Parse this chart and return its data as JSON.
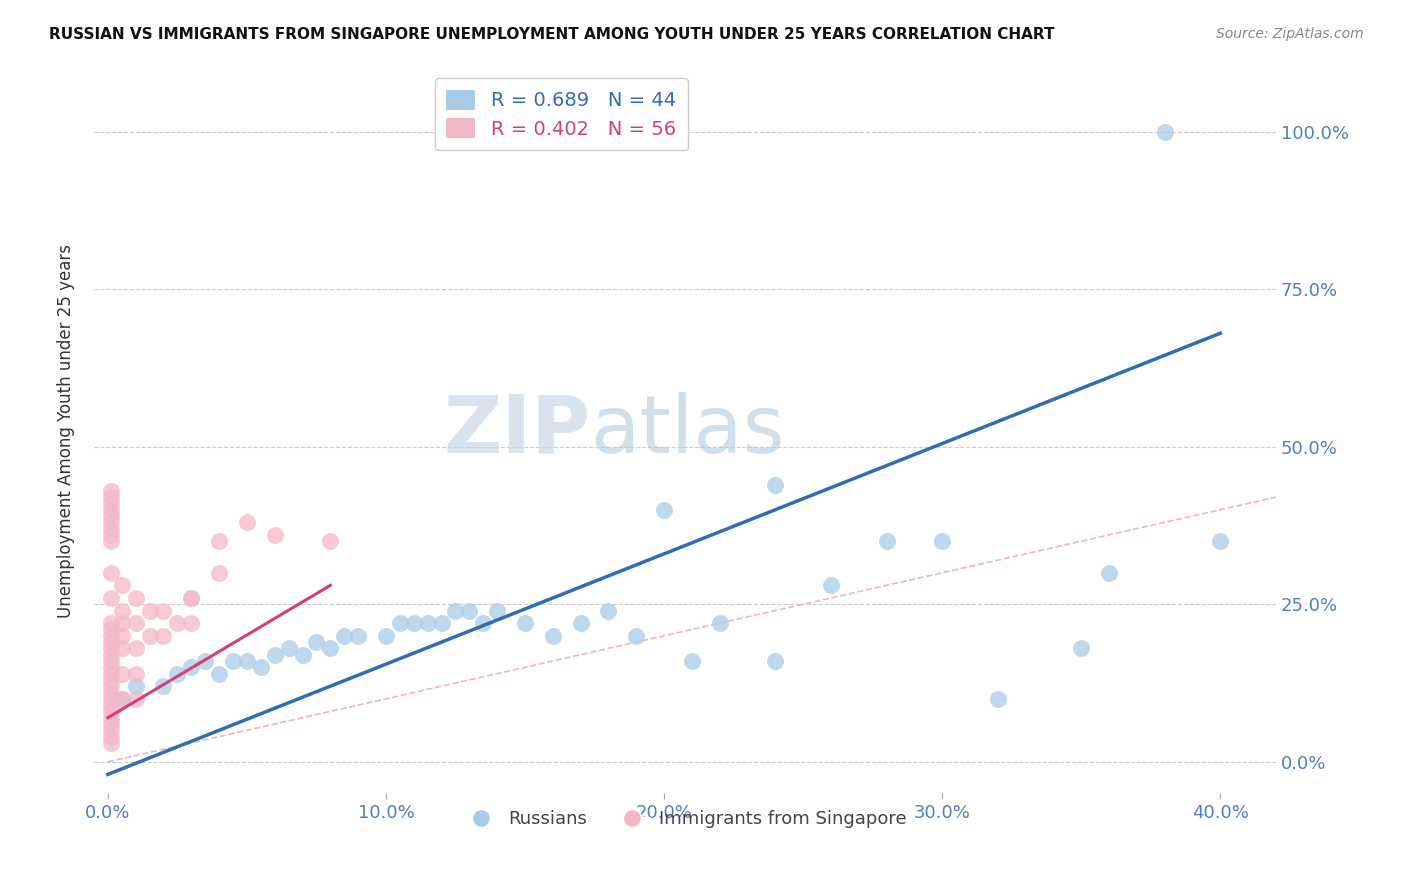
{
  "title": "RUSSIAN VS IMMIGRANTS FROM SINGAPORE UNEMPLOYMENT AMONG YOUTH UNDER 25 YEARS CORRELATION CHART",
  "source": "Source: ZipAtlas.com",
  "xlabel_ticks": [
    "0.0%",
    "10.0%",
    "20.0%",
    "30.0%",
    "40.0%"
  ],
  "xlabel_tick_vals": [
    0.0,
    0.1,
    0.2,
    0.3,
    0.4
  ],
  "ylabel": "Unemployment Among Youth under 25 years",
  "ylabel_ticks": [
    "0.0%",
    "25.0%",
    "50.0%",
    "75.0%",
    "100.0%"
  ],
  "ylabel_tick_vals": [
    0.0,
    0.25,
    0.5,
    0.75,
    1.0
  ],
  "xlim": [
    -0.005,
    0.42
  ],
  "ylim": [
    -0.05,
    1.1
  ],
  "legend_blue_label": "R = 0.689   N = 44",
  "legend_pink_label": "R = 0.402   N = 56",
  "legend_label_russians": "Russians",
  "legend_label_singapore": "Immigrants from Singapore",
  "blue_color": "#a8cce8",
  "pink_color": "#f4b8c8",
  "blue_line_color": "#2f6db5",
  "pink_line_color": "#d44070",
  "diag_line_color": "#e8b8c8",
  "watermark": "ZIPatlas",
  "blue_scatter_x": [
    0.005,
    0.01,
    0.02,
    0.025,
    0.03,
    0.035,
    0.04,
    0.045,
    0.05,
    0.055,
    0.06,
    0.065,
    0.07,
    0.075,
    0.08,
    0.085,
    0.09,
    0.1,
    0.105,
    0.11,
    0.115,
    0.12,
    0.125,
    0.13,
    0.135,
    0.14,
    0.15,
    0.16,
    0.17,
    0.18,
    0.19,
    0.2,
    0.21,
    0.22,
    0.24,
    0.26,
    0.28,
    0.3,
    0.32,
    0.35,
    0.24,
    0.36,
    0.38,
    0.4
  ],
  "blue_scatter_y": [
    0.1,
    0.12,
    0.12,
    0.14,
    0.15,
    0.16,
    0.14,
    0.16,
    0.16,
    0.15,
    0.17,
    0.18,
    0.17,
    0.19,
    0.18,
    0.2,
    0.2,
    0.2,
    0.22,
    0.22,
    0.22,
    0.22,
    0.24,
    0.24,
    0.22,
    0.24,
    0.22,
    0.2,
    0.22,
    0.24,
    0.2,
    0.4,
    0.16,
    0.22,
    0.16,
    0.28,
    0.35,
    0.35,
    0.1,
    0.18,
    0.44,
    0.3,
    1.0,
    0.35
  ],
  "pink_scatter_x": [
    0.001,
    0.001,
    0.001,
    0.001,
    0.001,
    0.001,
    0.001,
    0.001,
    0.001,
    0.001,
    0.001,
    0.001,
    0.001,
    0.001,
    0.001,
    0.001,
    0.001,
    0.001,
    0.001,
    0.001,
    0.005,
    0.005,
    0.005,
    0.005,
    0.005,
    0.005,
    0.01,
    0.01,
    0.01,
    0.01,
    0.015,
    0.015,
    0.02,
    0.02,
    0.025,
    0.03,
    0.03,
    0.04,
    0.05,
    0.06,
    0.01,
    0.005,
    0.001,
    0.03,
    0.001,
    0.001,
    0.001,
    0.001,
    0.001,
    0.001,
    0.001,
    0.001,
    0.001,
    0.04,
    0.001,
    0.08
  ],
  "pink_scatter_y": [
    0.09,
    0.1,
    0.11,
    0.12,
    0.13,
    0.14,
    0.15,
    0.16,
    0.17,
    0.18,
    0.19,
    0.2,
    0.21,
    0.22,
    0.05,
    0.06,
    0.07,
    0.08,
    0.03,
    0.04,
    0.1,
    0.14,
    0.18,
    0.2,
    0.22,
    0.24,
    0.1,
    0.14,
    0.18,
    0.22,
    0.2,
    0.24,
    0.2,
    0.24,
    0.22,
    0.22,
    0.26,
    0.3,
    0.38,
    0.36,
    0.26,
    0.28,
    0.26,
    0.26,
    0.35,
    0.36,
    0.37,
    0.38,
    0.39,
    0.4,
    0.41,
    0.42,
    0.43,
    0.35,
    0.3,
    0.35
  ],
  "blue_line_x": [
    0.0,
    0.4
  ],
  "blue_line_y": [
    -0.02,
    0.68
  ],
  "pink_line_x": [
    0.0,
    0.08
  ],
  "pink_line_y": [
    0.07,
    0.28
  ]
}
